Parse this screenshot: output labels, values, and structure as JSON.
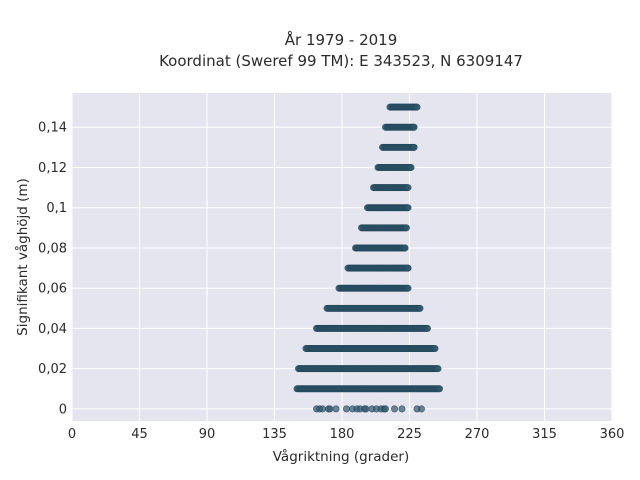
{
  "chart_data": {
    "type": "scatter",
    "title": [
      "År 1979 - 2019",
      "Koordinat (Sweref 99 TM): E 343523, N 6309147"
    ],
    "xlabel": "Vågriktning (grader)",
    "ylabel": "Signifikant våghöjd (m)",
    "xlim": [
      0,
      360
    ],
    "ylim": [
      -0.006,
      0.157
    ],
    "xticks": [
      0,
      45,
      90,
      135,
      180,
      225,
      270,
      315,
      360
    ],
    "xtick_labels": [
      "0",
      "45",
      "90",
      "135",
      "180",
      "225",
      "270",
      "315",
      "360"
    ],
    "yticks": [
      0,
      0.02,
      0.04,
      0.06,
      0.08,
      0.1,
      0.12,
      0.14
    ],
    "ytick_labels": [
      "0",
      "0,02",
      "0,04",
      "0,06",
      "0,08",
      "0,1",
      "0,12",
      "0,14"
    ],
    "grid": true,
    "colors": {
      "background": "#e5e5f0",
      "grid": "#ffffff",
      "marker": "#2e556a"
    },
    "rows": [
      {
        "y": 0.15,
        "x_min": 212,
        "x_max": 230
      },
      {
        "y": 0.14,
        "x_min": 209,
        "x_max": 228
      },
      {
        "y": 0.13,
        "x_min": 207,
        "x_max": 228
      },
      {
        "y": 0.12,
        "x_min": 204,
        "x_max": 226
      },
      {
        "y": 0.11,
        "x_min": 201,
        "x_max": 224
      },
      {
        "y": 0.1,
        "x_min": 197,
        "x_max": 224
      },
      {
        "y": 0.09,
        "x_min": 193,
        "x_max": 223
      },
      {
        "y": 0.08,
        "x_min": 189,
        "x_max": 222
      },
      {
        "y": 0.07,
        "x_min": 184,
        "x_max": 224
      },
      {
        "y": 0.06,
        "x_min": 178,
        "x_max": 224
      },
      {
        "y": 0.05,
        "x_min": 170,
        "x_max": 232
      },
      {
        "y": 0.04,
        "x_min": 163,
        "x_max": 237
      },
      {
        "y": 0.03,
        "x_min": 156,
        "x_max": 242
      },
      {
        "y": 0.02,
        "x_min": 151,
        "x_max": 244
      },
      {
        "y": 0.01,
        "x_min": 150,
        "x_max": 245
      }
    ],
    "points_at_zero": [
      163,
      165,
      167,
      171,
      172,
      176,
      183,
      187,
      190,
      192,
      195,
      196,
      200,
      203,
      206,
      208,
      209,
      215,
      220,
      230,
      233
    ]
  }
}
